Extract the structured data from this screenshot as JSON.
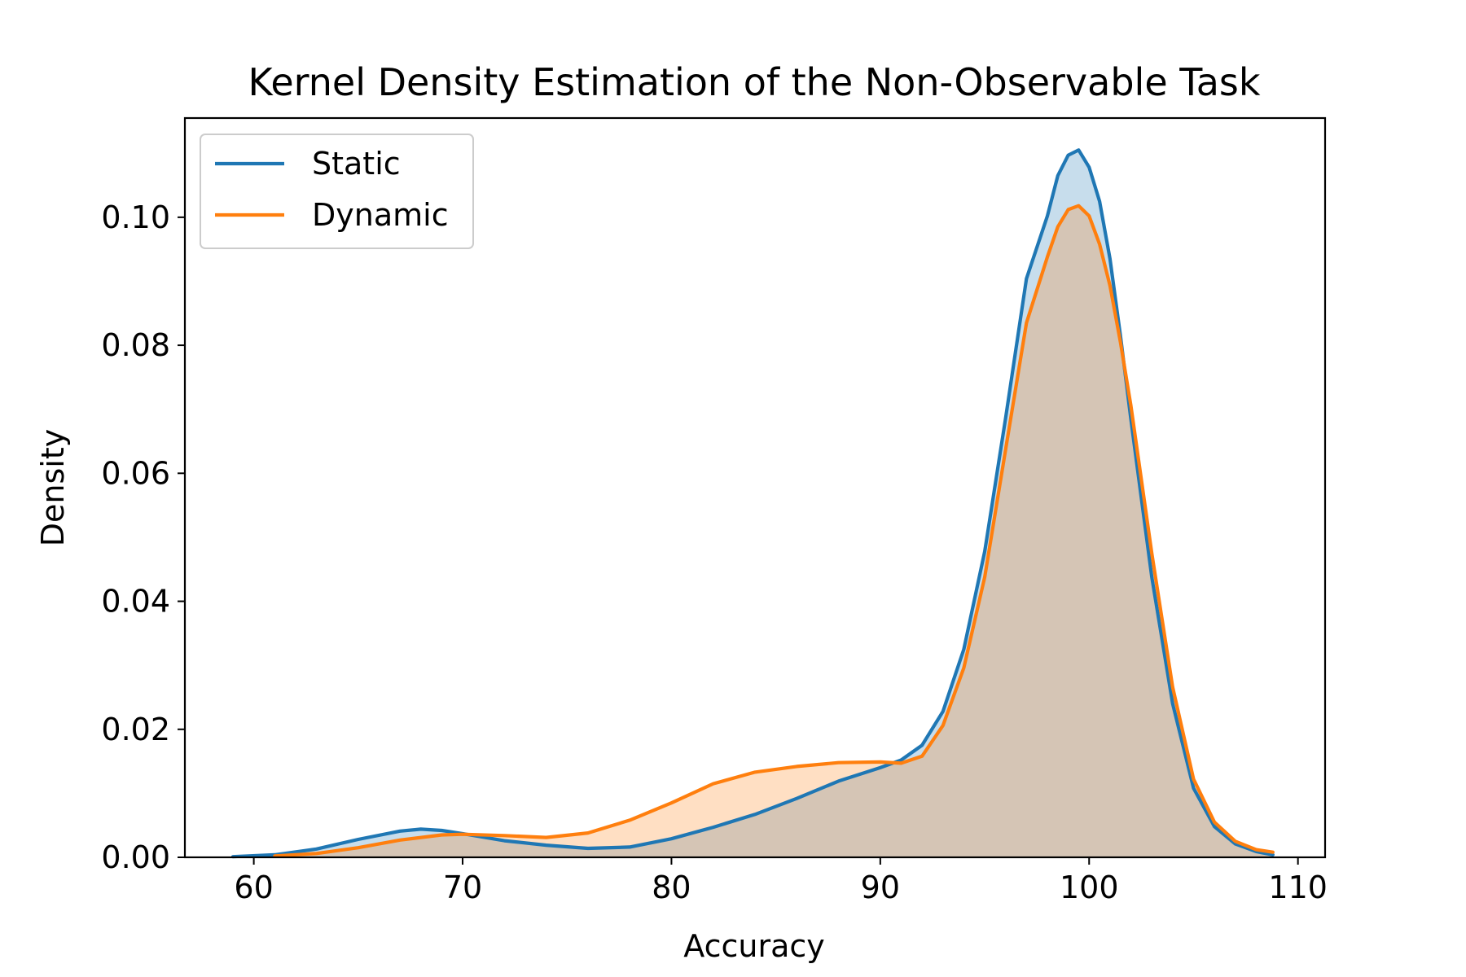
{
  "chart_data": {
    "type": "area",
    "title": "Kernel Density Estimation of the Non-Observable Task",
    "xlabel": "Accuracy",
    "ylabel": "Density",
    "xlim": [
      56.7,
      111.3
    ],
    "ylim": [
      0,
      0.1155
    ],
    "xticks": [
      60,
      70,
      80,
      90,
      100,
      110
    ],
    "xtick_labels": [
      "60",
      "70",
      "80",
      "90",
      "100",
      "110"
    ],
    "yticks": [
      0,
      0.02,
      0.04,
      0.06,
      0.08,
      0.1
    ],
    "ytick_labels": [
      "0.00",
      "0.02",
      "0.04",
      "0.06",
      "0.08",
      "0.10"
    ],
    "grid": false,
    "legend_position": "top-left",
    "series": [
      {
        "name": "Static",
        "color": "#1f77b4",
        "fill": "#1f77b4",
        "fill_opacity": 0.25,
        "x": [
          59,
          61,
          63,
          65,
          67,
          68,
          69,
          70,
          72,
          74,
          76,
          78,
          80,
          82,
          84,
          86,
          88,
          90,
          91,
          92,
          93,
          94,
          95,
          96,
          97,
          98,
          98.5,
          99,
          99.5,
          100,
          100.5,
          101,
          101.5,
          102,
          103,
          104,
          105,
          106,
          107,
          108,
          108.8
        ],
        "y": [
          0.0001,
          0.0004,
          0.0013,
          0.0028,
          0.0041,
          0.0044,
          0.0042,
          0.0037,
          0.0026,
          0.0019,
          0.0014,
          0.0016,
          0.0029,
          0.0047,
          0.0067,
          0.0092,
          0.0119,
          0.014,
          0.0152,
          0.0175,
          0.0228,
          0.0325,
          0.0478,
          0.0686,
          0.0904,
          0.1002,
          0.1065,
          0.1097,
          0.1105,
          0.1078,
          0.1025,
          0.0935,
          0.0815,
          0.0685,
          0.0438,
          0.024,
          0.0108,
          0.0048,
          0.0021,
          0.0009,
          0.0004
        ]
      },
      {
        "name": "Dynamic",
        "color": "#ff7f0e",
        "fill": "#ff7f0e",
        "fill_opacity": 0.25,
        "x": [
          61,
          63,
          65,
          67,
          69,
          70,
          72,
          74,
          76,
          78,
          80,
          82,
          84,
          86,
          88,
          90,
          91,
          92,
          93,
          94,
          95,
          96,
          97,
          98,
          98.5,
          99,
          99.5,
          100,
          100.5,
          101,
          101.5,
          102,
          103,
          104,
          105,
          106,
          107,
          108,
          108.8
        ],
        "y": [
          0.0002,
          0.0006,
          0.0015,
          0.0027,
          0.0035,
          0.0036,
          0.0034,
          0.0031,
          0.0038,
          0.0058,
          0.0085,
          0.0115,
          0.0133,
          0.0142,
          0.0148,
          0.0149,
          0.0147,
          0.0158,
          0.0206,
          0.0296,
          0.0438,
          0.0637,
          0.0835,
          0.0938,
          0.0985,
          0.1012,
          0.1018,
          0.1002,
          0.0958,
          0.0893,
          0.0805,
          0.0706,
          0.0475,
          0.0266,
          0.0122,
          0.0055,
          0.0025,
          0.0012,
          0.0008
        ]
      }
    ]
  }
}
